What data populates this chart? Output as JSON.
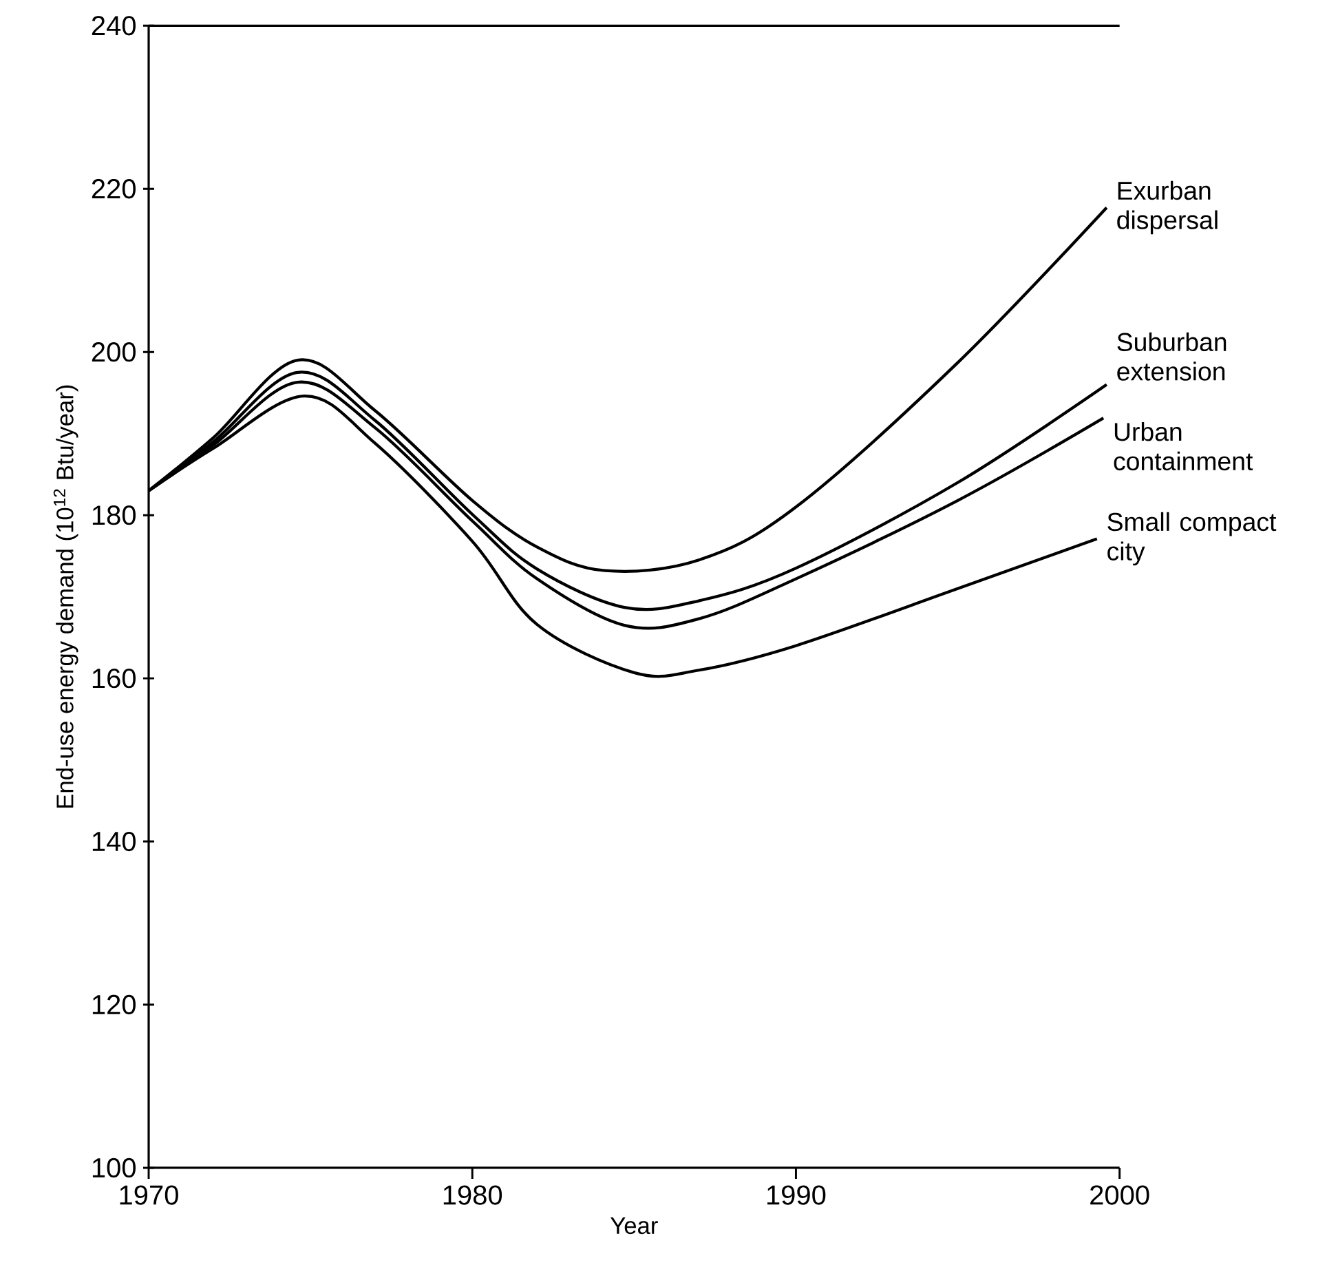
{
  "chart_data": {
    "type": "line",
    "xlabel": "Year",
    "ylabel": "End-use energy demand (10$^{12}$ Btu/year)",
    "xlim": [
      1970,
      2000
    ],
    "ylim": [
      100,
      240
    ],
    "xticks": [
      1970,
      1980,
      1990,
      2000
    ],
    "yticks": [
      100,
      120,
      140,
      160,
      180,
      200,
      220,
      240
    ],
    "grid": false,
    "legend": false,
    "marker": "none",
    "line_style": "solid",
    "series": [
      {
        "name": "Exurban dispersal",
        "color": "#000000",
        "x": [
          1970,
          1972,
          1974.6,
          1977,
          1980,
          1982,
          1984.1,
          1987,
          1990,
          1995,
          1999.6
        ],
        "values": [
          183,
          189.5,
          199,
          192.8,
          181.8,
          176.1,
          173.2,
          174.5,
          181,
          198.7,
          217.7
        ]
      },
      {
        "name": "Suburban extension",
        "color": "#000000",
        "x": [
          1970,
          1972,
          1974.6,
          1977,
          1980,
          1982,
          1984.7,
          1987,
          1990,
          1995,
          1999.6
        ],
        "values": [
          183,
          189,
          197.5,
          191.6,
          180.1,
          173.4,
          168.7,
          169.5,
          173.5,
          184,
          196
        ]
      },
      {
        "name": "Urban containment",
        "color": "#000000",
        "x": [
          1970,
          1972,
          1974.6,
          1977,
          1980,
          1982,
          1984.7,
          1987,
          1990,
          1995,
          1999.5
        ],
        "values": [
          183,
          188.6,
          196.3,
          190.7,
          179.3,
          172.2,
          166.5,
          167.3,
          172.2,
          181.8,
          191.9
        ]
      },
      {
        "name": "Small compact city",
        "color": "#000000",
        "x": [
          1970,
          1972,
          1974.8,
          1977,
          1980,
          1982,
          1985,
          1987,
          1990,
          1995,
          1999.3
        ],
        "values": [
          183,
          188.2,
          194.6,
          188.8,
          176.8,
          166.6,
          160.7,
          161,
          164,
          171,
          177.1
        ]
      }
    ]
  }
}
